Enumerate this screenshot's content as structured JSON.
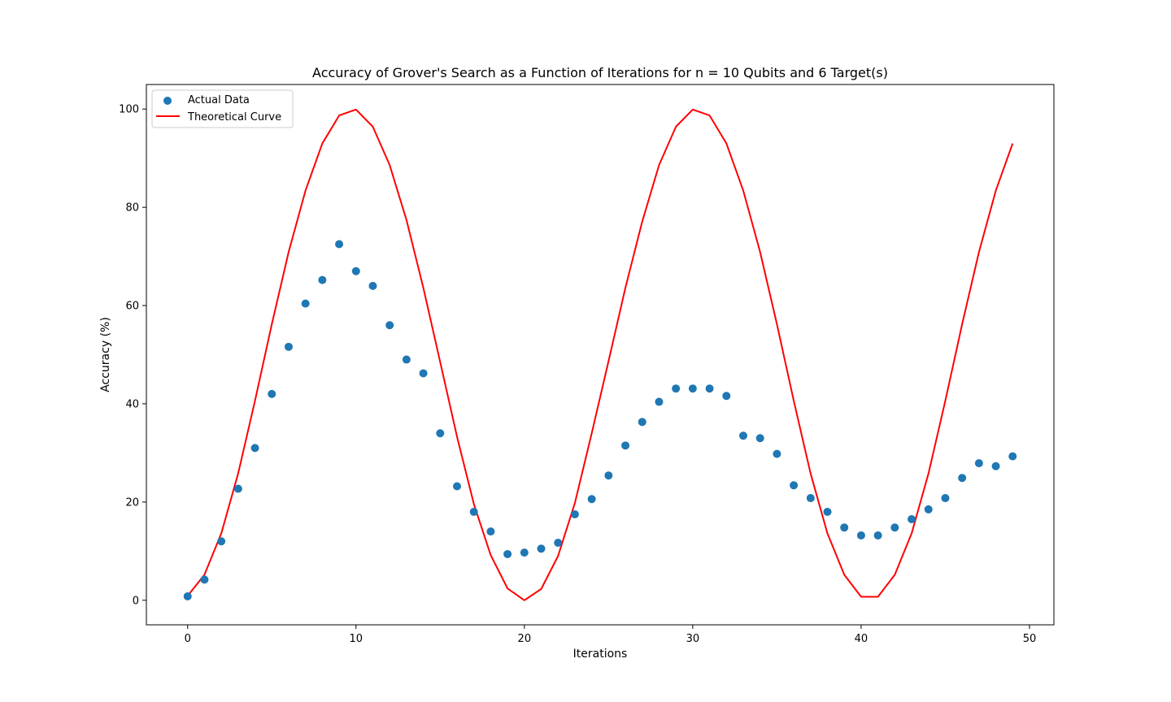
{
  "chart_data": {
    "type": "scatter",
    "title": "Accuracy of Grover's Search as a Function of Iterations for n = 10 Qubits and 6 Target(s)",
    "xlabel": "Iterations",
    "ylabel": "Accuracy (%)",
    "xlim": [
      -2.45,
      51.45
    ],
    "ylim": [
      -5,
      105
    ],
    "xticks": [
      0,
      10,
      20,
      30,
      40,
      50
    ],
    "yticks": [
      0,
      20,
      40,
      60,
      80,
      100
    ],
    "grid": false,
    "legend_position": "top-left",
    "series": [
      {
        "name": "Actual Data",
        "kind": "scatter",
        "color": "#1f77b4",
        "x": [
          0,
          1,
          2,
          3,
          4,
          5,
          6,
          7,
          8,
          9,
          10,
          11,
          12,
          13,
          14,
          15,
          16,
          17,
          18,
          19,
          20,
          21,
          22,
          23,
          24,
          25,
          26,
          27,
          28,
          29,
          30,
          31,
          32,
          33,
          34,
          35,
          36,
          37,
          38,
          39,
          40,
          41,
          42,
          43,
          44,
          45,
          46,
          47,
          48,
          49
        ],
        "y": [
          0.8,
          4.2,
          12.0,
          22.7,
          31.0,
          42.0,
          51.6,
          60.4,
          65.2,
          72.5,
          67.0,
          64.0,
          56.0,
          49.0,
          46.2,
          34.0,
          23.2,
          18.0,
          14.0,
          9.4,
          9.7,
          10.5,
          11.7,
          17.5,
          20.6,
          25.4,
          31.5,
          36.3,
          40.4,
          43.1,
          43.1,
          43.1,
          41.6,
          33.5,
          33.0,
          29.8,
          23.4,
          20.8,
          18.0,
          14.8,
          13.2,
          13.2,
          14.8,
          16.5,
          18.5,
          20.8,
          24.9,
          27.9,
          27.3,
          29.3
        ]
      },
      {
        "name": "Theoretical Curve",
        "kind": "line",
        "color": "#ff0000",
        "x": [
          0,
          1,
          2,
          3,
          4,
          5,
          6,
          7,
          8,
          9,
          10,
          11,
          12,
          13,
          14,
          15,
          16,
          17,
          18,
          19,
          20,
          21,
          22,
          23,
          24,
          25,
          26,
          27,
          28,
          29,
          30,
          31,
          32,
          33,
          34,
          35,
          36,
          37,
          38,
          39,
          40,
          41,
          42,
          43,
          44,
          45,
          46,
          47,
          48,
          49
        ],
        "y": [
          0.9,
          5.2,
          13.6,
          25.8,
          40.6,
          56.2,
          70.9,
          83.4,
          93.0,
          98.7,
          99.9,
          96.4,
          88.6,
          77.4,
          63.6,
          48.5,
          33.3,
          19.6,
          9.2,
          2.4,
          0.0,
          2.3,
          9.0,
          19.8,
          34.0,
          48.7,
          63.6,
          77.1,
          88.6,
          96.4,
          99.9,
          98.7,
          93.0,
          83.4,
          70.9,
          56.2,
          40.6,
          25.8,
          13.6,
          5.2,
          0.7,
          0.7,
          5.2,
          13.6,
          25.8,
          40.6,
          56.2,
          70.9,
          83.4,
          93.0
        ]
      }
    ]
  }
}
